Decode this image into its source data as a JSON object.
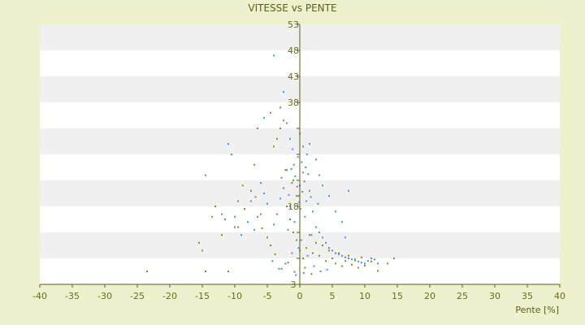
{
  "chart_data": {
    "type": "scatter",
    "title": "VITESSE vs PENTE",
    "xlabel": "Pente [%]",
    "ylabel": "",
    "xlim": [
      -40,
      40
    ],
    "ylim": [
      3,
      53
    ],
    "x_ticks": [
      -40,
      -35,
      -30,
      -25,
      -20,
      -15,
      -10,
      -5,
      0,
      5,
      10,
      15,
      20,
      25,
      30,
      35,
      40
    ],
    "y_ticks": [
      3,
      8,
      13,
      18,
      23,
      28,
      33,
      38,
      43,
      48,
      53
    ],
    "y_tick_labels_visible": [
      "3",
      "18",
      "38",
      "43",
      "48",
      "53"
    ],
    "grid": "horizontal alternating bands",
    "colors": {
      "series_blue": "#4a90d9",
      "series_olive": "#8c8c14",
      "band_light": "#f0f0f0",
      "band_white": "#ffffff",
      "background": "#eef2cc",
      "axis": "#5b5b1e"
    },
    "series": [
      {
        "color": "#4a90d9",
        "points": [
          [
            0.0,
            22.0
          ],
          [
            0.5,
            24.5
          ],
          [
            -0.5,
            20.0
          ],
          [
            1.0,
            19.0
          ],
          [
            -1.0,
            23.0
          ],
          [
            1.5,
            21.0
          ],
          [
            -1.5,
            18.0
          ],
          [
            2.0,
            17.0
          ],
          [
            -2.0,
            25.0
          ],
          [
            0.3,
            26.5
          ],
          [
            -0.3,
            27.5
          ],
          [
            0.8,
            16.0
          ],
          [
            -0.8,
            15.0
          ],
          [
            2.5,
            14.0
          ],
          [
            -2.5,
            21.5
          ],
          [
            3.0,
            13.0
          ],
          [
            -3.0,
            19.5
          ],
          [
            3.5,
            12.0
          ],
          [
            -3.5,
            16.5
          ],
          [
            4.0,
            11.0
          ],
          [
            -4.0,
            14.5
          ],
          [
            4.5,
            10.0
          ],
          [
            5.0,
            9.5
          ],
          [
            5.5,
            9.0
          ],
          [
            6.0,
            8.8
          ],
          [
            6.5,
            8.5
          ],
          [
            7.0,
            8.2
          ],
          [
            7.5,
            8.0
          ],
          [
            8.0,
            7.8
          ],
          [
            8.5,
            7.6
          ],
          [
            9.0,
            7.4
          ],
          [
            9.5,
            7.2
          ],
          [
            10.0,
            7.0
          ],
          [
            10.5,
            7.5
          ],
          [
            11.0,
            8.0
          ],
          [
            11.5,
            7.8
          ],
          [
            12.0,
            7.0
          ],
          [
            -5.0,
            18.5
          ],
          [
            -5.5,
            20.5
          ],
          [
            -6.0,
            22.5
          ],
          [
            -6.5,
            16.0
          ],
          [
            -7.0,
            13.5
          ],
          [
            -7.5,
            19.0
          ],
          [
            -8.0,
            15.0
          ],
          [
            -8.5,
            17.5
          ],
          [
            -9.0,
            12.5
          ],
          [
            -9.5,
            14.0
          ],
          [
            -10.0,
            16.0
          ],
          [
            -10.5,
            28.0
          ],
          [
            -11.0,
            30.0
          ],
          [
            -11.5,
            15.5
          ],
          [
            -12.0,
            16.5
          ],
          [
            -6.5,
            33.0
          ],
          [
            -5.5,
            35.0
          ],
          [
            -4.5,
            36.0
          ],
          [
            -3.0,
            37.0
          ],
          [
            -2.0,
            34.0
          ],
          [
            -2.5,
            40.0
          ],
          [
            -4.0,
            47.0
          ],
          [
            -1.5,
            31.0
          ],
          [
            0.0,
            32.0
          ],
          [
            0.5,
            29.5
          ],
          [
            1.5,
            30.0
          ],
          [
            2.5,
            27.0
          ],
          [
            3.0,
            24.0
          ],
          [
            3.5,
            22.0
          ],
          [
            4.5,
            20.0
          ],
          [
            5.5,
            17.0
          ],
          [
            6.5,
            15.0
          ],
          [
            7.0,
            12.0
          ],
          [
            7.5,
            21.0
          ],
          [
            -0.2,
            10.0
          ],
          [
            0.2,
            11.5
          ],
          [
            -1.2,
            9.0
          ],
          [
            1.2,
            8.5
          ],
          [
            2.2,
            6.5
          ],
          [
            -2.2,
            7.0
          ],
          [
            3.2,
            5.5
          ],
          [
            -3.2,
            6.0
          ],
          [
            4.2,
            5.8
          ],
          [
            -4.2,
            7.5
          ],
          [
            0.6,
            5.2
          ],
          [
            -0.6,
            4.8
          ],
          [
            1.8,
            12.5
          ],
          [
            -1.8,
            13.5
          ],
          [
            2.8,
            18.5
          ],
          [
            -2.8,
            23.5
          ],
          [
            0.9,
            25.5
          ],
          [
            -0.9,
            26.0
          ],
          [
            1.1,
            28.0
          ],
          [
            -1.1,
            29.0
          ],
          [
            0.1,
            17.5
          ],
          [
            -0.1,
            18.8
          ],
          [
            0.4,
            20.8
          ],
          [
            -0.4,
            21.8
          ],
          [
            0.7,
            22.8
          ],
          [
            -0.7,
            23.8
          ],
          [
            1.3,
            24.2
          ],
          [
            -1.3,
            25.2
          ],
          [
            1.7,
            19.8
          ],
          [
            -1.7,
            20.2
          ]
        ]
      },
      {
        "color": "#8c8c14",
        "points": [
          [
            -23.5,
            5.5
          ],
          [
            -15.0,
            9.5
          ],
          [
            -15.5,
            11.0
          ],
          [
            -14.5,
            5.5
          ],
          [
            -14.5,
            24.0
          ],
          [
            -13.5,
            16.0
          ],
          [
            -13.0,
            18.0
          ],
          [
            -11.0,
            5.5
          ],
          [
            -10.0,
            14.0
          ],
          [
            -9.5,
            19.0
          ],
          [
            -8.5,
            17.5
          ],
          [
            -7.5,
            21.0
          ],
          [
            -7.0,
            26.0
          ],
          [
            -6.0,
            16.5
          ],
          [
            -5.0,
            12.0
          ],
          [
            -4.5,
            10.5
          ],
          [
            -4.0,
            29.5
          ],
          [
            -3.5,
            31.0
          ],
          [
            -3.0,
            33.0
          ],
          [
            -2.5,
            34.5
          ],
          [
            -2.0,
            18.0
          ],
          [
            -1.5,
            15.5
          ],
          [
            -1.0,
            13.0
          ],
          [
            -0.5,
            11.5
          ],
          [
            0.0,
            9.5
          ],
          [
            0.5,
            8.0
          ],
          [
            1.0,
            10.0
          ],
          [
            1.5,
            12.5
          ],
          [
            2.0,
            9.0
          ],
          [
            2.5,
            11.0
          ],
          [
            3.0,
            8.5
          ],
          [
            3.5,
            10.5
          ],
          [
            4.0,
            7.5
          ],
          [
            4.5,
            9.5
          ],
          [
            5.0,
            8.0
          ],
          [
            5.5,
            7.0
          ],
          [
            6.0,
            9.0
          ],
          [
            6.5,
            6.5
          ],
          [
            7.0,
            7.5
          ],
          [
            7.5,
            8.5
          ],
          [
            8.0,
            6.8
          ],
          [
            8.5,
            7.8
          ],
          [
            9.0,
            6.2
          ],
          [
            9.5,
            8.2
          ],
          [
            10.0,
            6.6
          ],
          [
            11.0,
            7.4
          ],
          [
            12.0,
            5.6
          ],
          [
            13.5,
            7.0
          ],
          [
            14.5,
            8.0
          ],
          [
            -2.8,
            6.0
          ],
          [
            -1.8,
            7.2
          ],
          [
            -0.8,
            5.4
          ],
          [
            0.8,
            6.2
          ],
          [
            1.8,
            5.0
          ],
          [
            -3.8,
            8.8
          ],
          [
            -5.8,
            13.8
          ],
          [
            -6.8,
            19.8
          ],
          [
            -8.8,
            22.0
          ],
          [
            -12.0,
            12.5
          ],
          [
            -2.2,
            25.0
          ],
          [
            -1.2,
            22.5
          ],
          [
            -0.2,
            20.0
          ]
        ]
      }
    ]
  }
}
